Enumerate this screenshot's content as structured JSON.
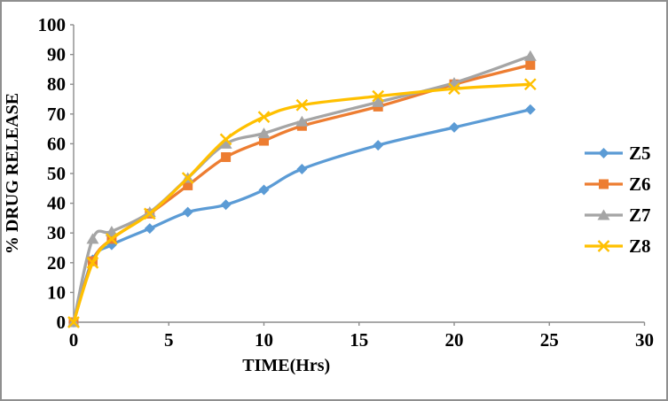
{
  "figure": {
    "background": "#ffffff",
    "border_color": "#8f8f8f",
    "axis_color": "#8c8c8c"
  },
  "chart_data": {
    "type": "line",
    "title": "",
    "xlabel": "TIME(Hrs)",
    "ylabel": "% DRUG RELEASE",
    "xlim": [
      0,
      30
    ],
    "ylim": [
      0,
      100
    ],
    "x_ticks": [
      0,
      5,
      10,
      15,
      20,
      25,
      30
    ],
    "y_ticks": [
      0,
      10,
      20,
      30,
      40,
      50,
      60,
      70,
      80,
      90,
      100
    ],
    "grid": false,
    "smoothed": true,
    "legend_position": "right",
    "x": [
      0,
      1,
      2,
      4,
      6,
      8,
      10,
      12,
      16,
      20,
      24
    ],
    "series": [
      {
        "name": "Z5",
        "color": "#5B9BD5",
        "marker": "diamond",
        "values": [
          0,
          21,
          26,
          31.5,
          37,
          39.5,
          44.5,
          51.5,
          59.5,
          65.5,
          71.5
        ]
      },
      {
        "name": "Z6",
        "color": "#ED7D31",
        "marker": "square",
        "values": [
          0,
          20.5,
          28,
          36.5,
          46,
          55.5,
          61,
          66,
          72.5,
          80,
          86.5
        ]
      },
      {
        "name": "Z7",
        "color": "#A5A5A5",
        "marker": "triangle",
        "values": [
          0,
          28,
          30.5,
          37,
          48.5,
          60,
          63.5,
          67.5,
          74,
          80.5,
          89.5
        ]
      },
      {
        "name": "Z8",
        "color": "#FFC000",
        "marker": "x",
        "values": [
          0,
          20,
          28,
          36.5,
          48.5,
          61.5,
          69,
          73,
          76,
          78.5,
          80
        ]
      }
    ]
  }
}
